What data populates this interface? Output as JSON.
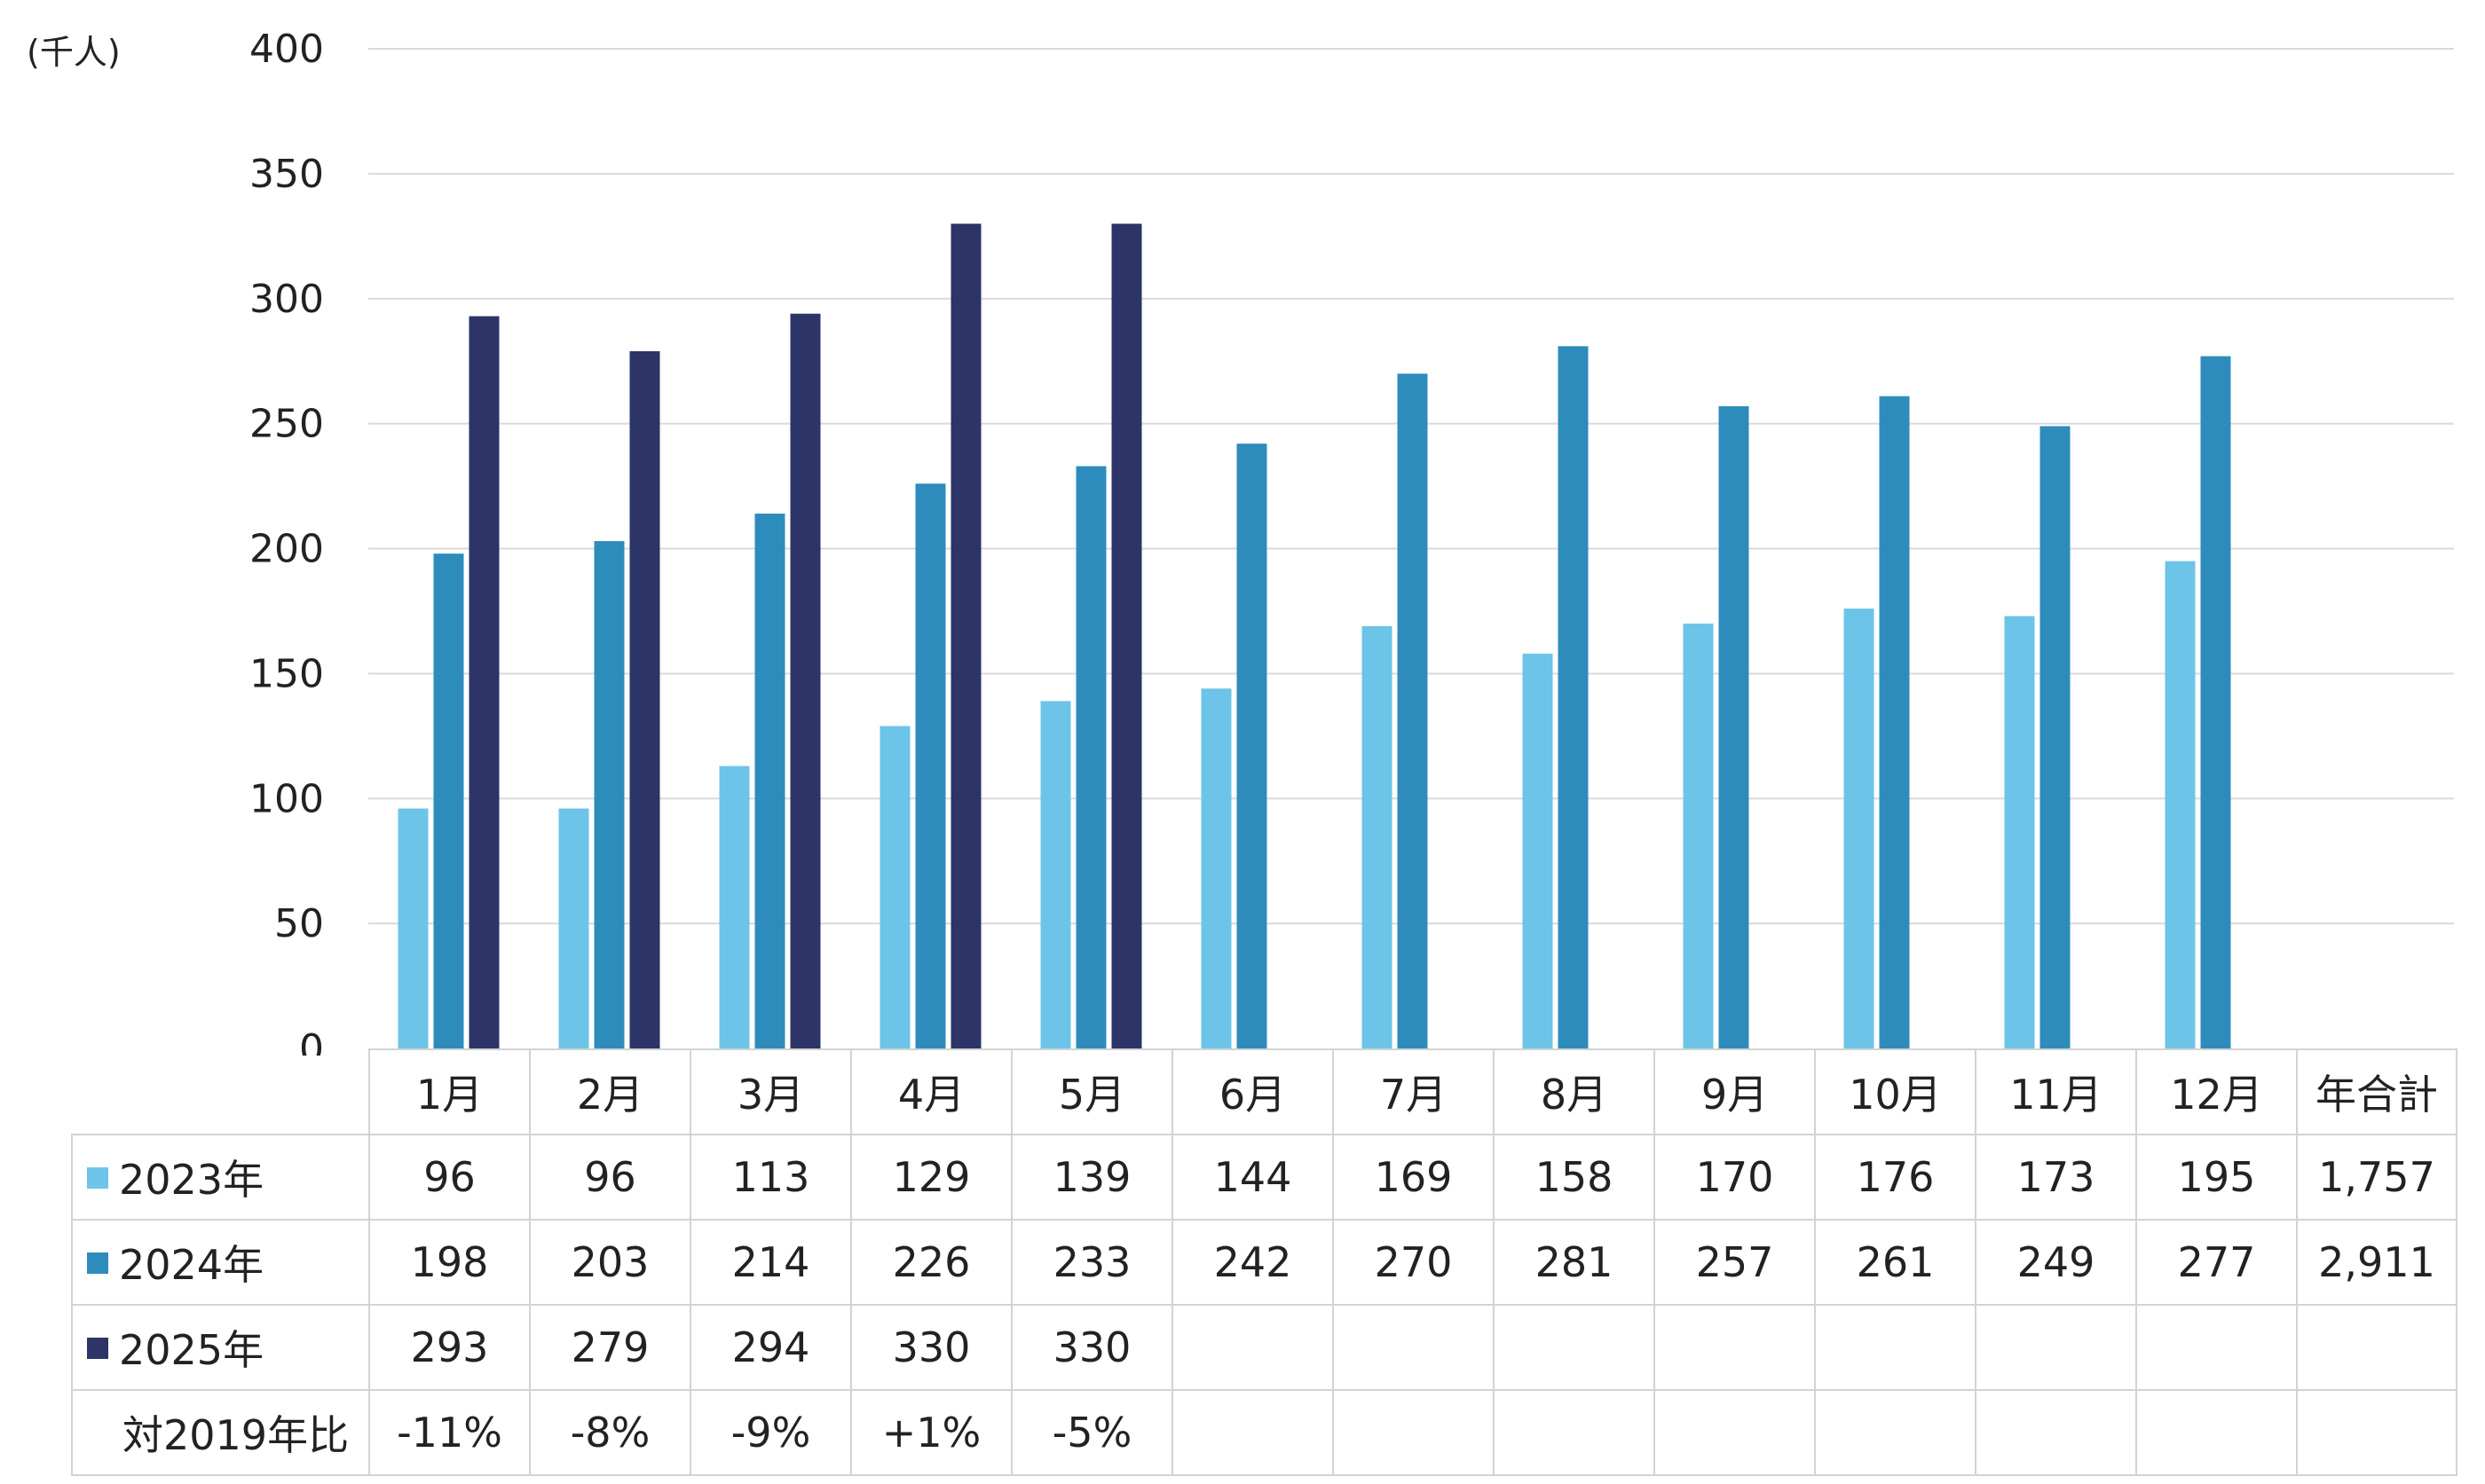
{
  "chart_data": {
    "type": "bar",
    "unit_label": "(千人)",
    "ylim": [
      0,
      400
    ],
    "yticks": [
      0,
      50,
      100,
      150,
      200,
      250,
      300,
      350,
      400
    ],
    "grid": true,
    "categories": [
      "1月",
      "2月",
      "3月",
      "4月",
      "5月",
      "6月",
      "7月",
      "8月",
      "9月",
      "10月",
      "11月",
      "12月"
    ],
    "series": [
      {
        "name": "2023年",
        "color": "#6cc4e8",
        "values": [
          96,
          96,
          113,
          129,
          139,
          144,
          169,
          158,
          170,
          176,
          173,
          195
        ]
      },
      {
        "name": "2024年",
        "color": "#2e8cbd",
        "values": [
          198,
          203,
          214,
          226,
          233,
          242,
          270,
          281,
          257,
          261,
          249,
          277
        ]
      },
      {
        "name": "2025年",
        "color": "#2d3468",
        "values": [
          293,
          279,
          294,
          330,
          330,
          null,
          null,
          null,
          null,
          null,
          null,
          null
        ]
      }
    ]
  },
  "table": {
    "total_header": "年合計",
    "rows": [
      {
        "label": "2023年",
        "cells": [
          "96",
          "96",
          "113",
          "129",
          "139",
          "144",
          "169",
          "158",
          "170",
          "176",
          "173",
          "195"
        ],
        "total": "1,757"
      },
      {
        "label": "2024年",
        "cells": [
          "198",
          "203",
          "214",
          "226",
          "233",
          "242",
          "270",
          "281",
          "257",
          "261",
          "249",
          "277"
        ],
        "total": "2,911"
      },
      {
        "label": "2025年",
        "cells": [
          "293",
          "279",
          "294",
          "330",
          "330",
          "",
          "",
          "",
          "",
          "",
          "",
          ""
        ],
        "total": ""
      },
      {
        "label": "対2019年比",
        "cells": [
          "-11%",
          "-8%",
          "-9%",
          "+1%",
          "-5%",
          "",
          "",
          "",
          "",
          "",
          "",
          ""
        ],
        "total": ""
      }
    ]
  }
}
